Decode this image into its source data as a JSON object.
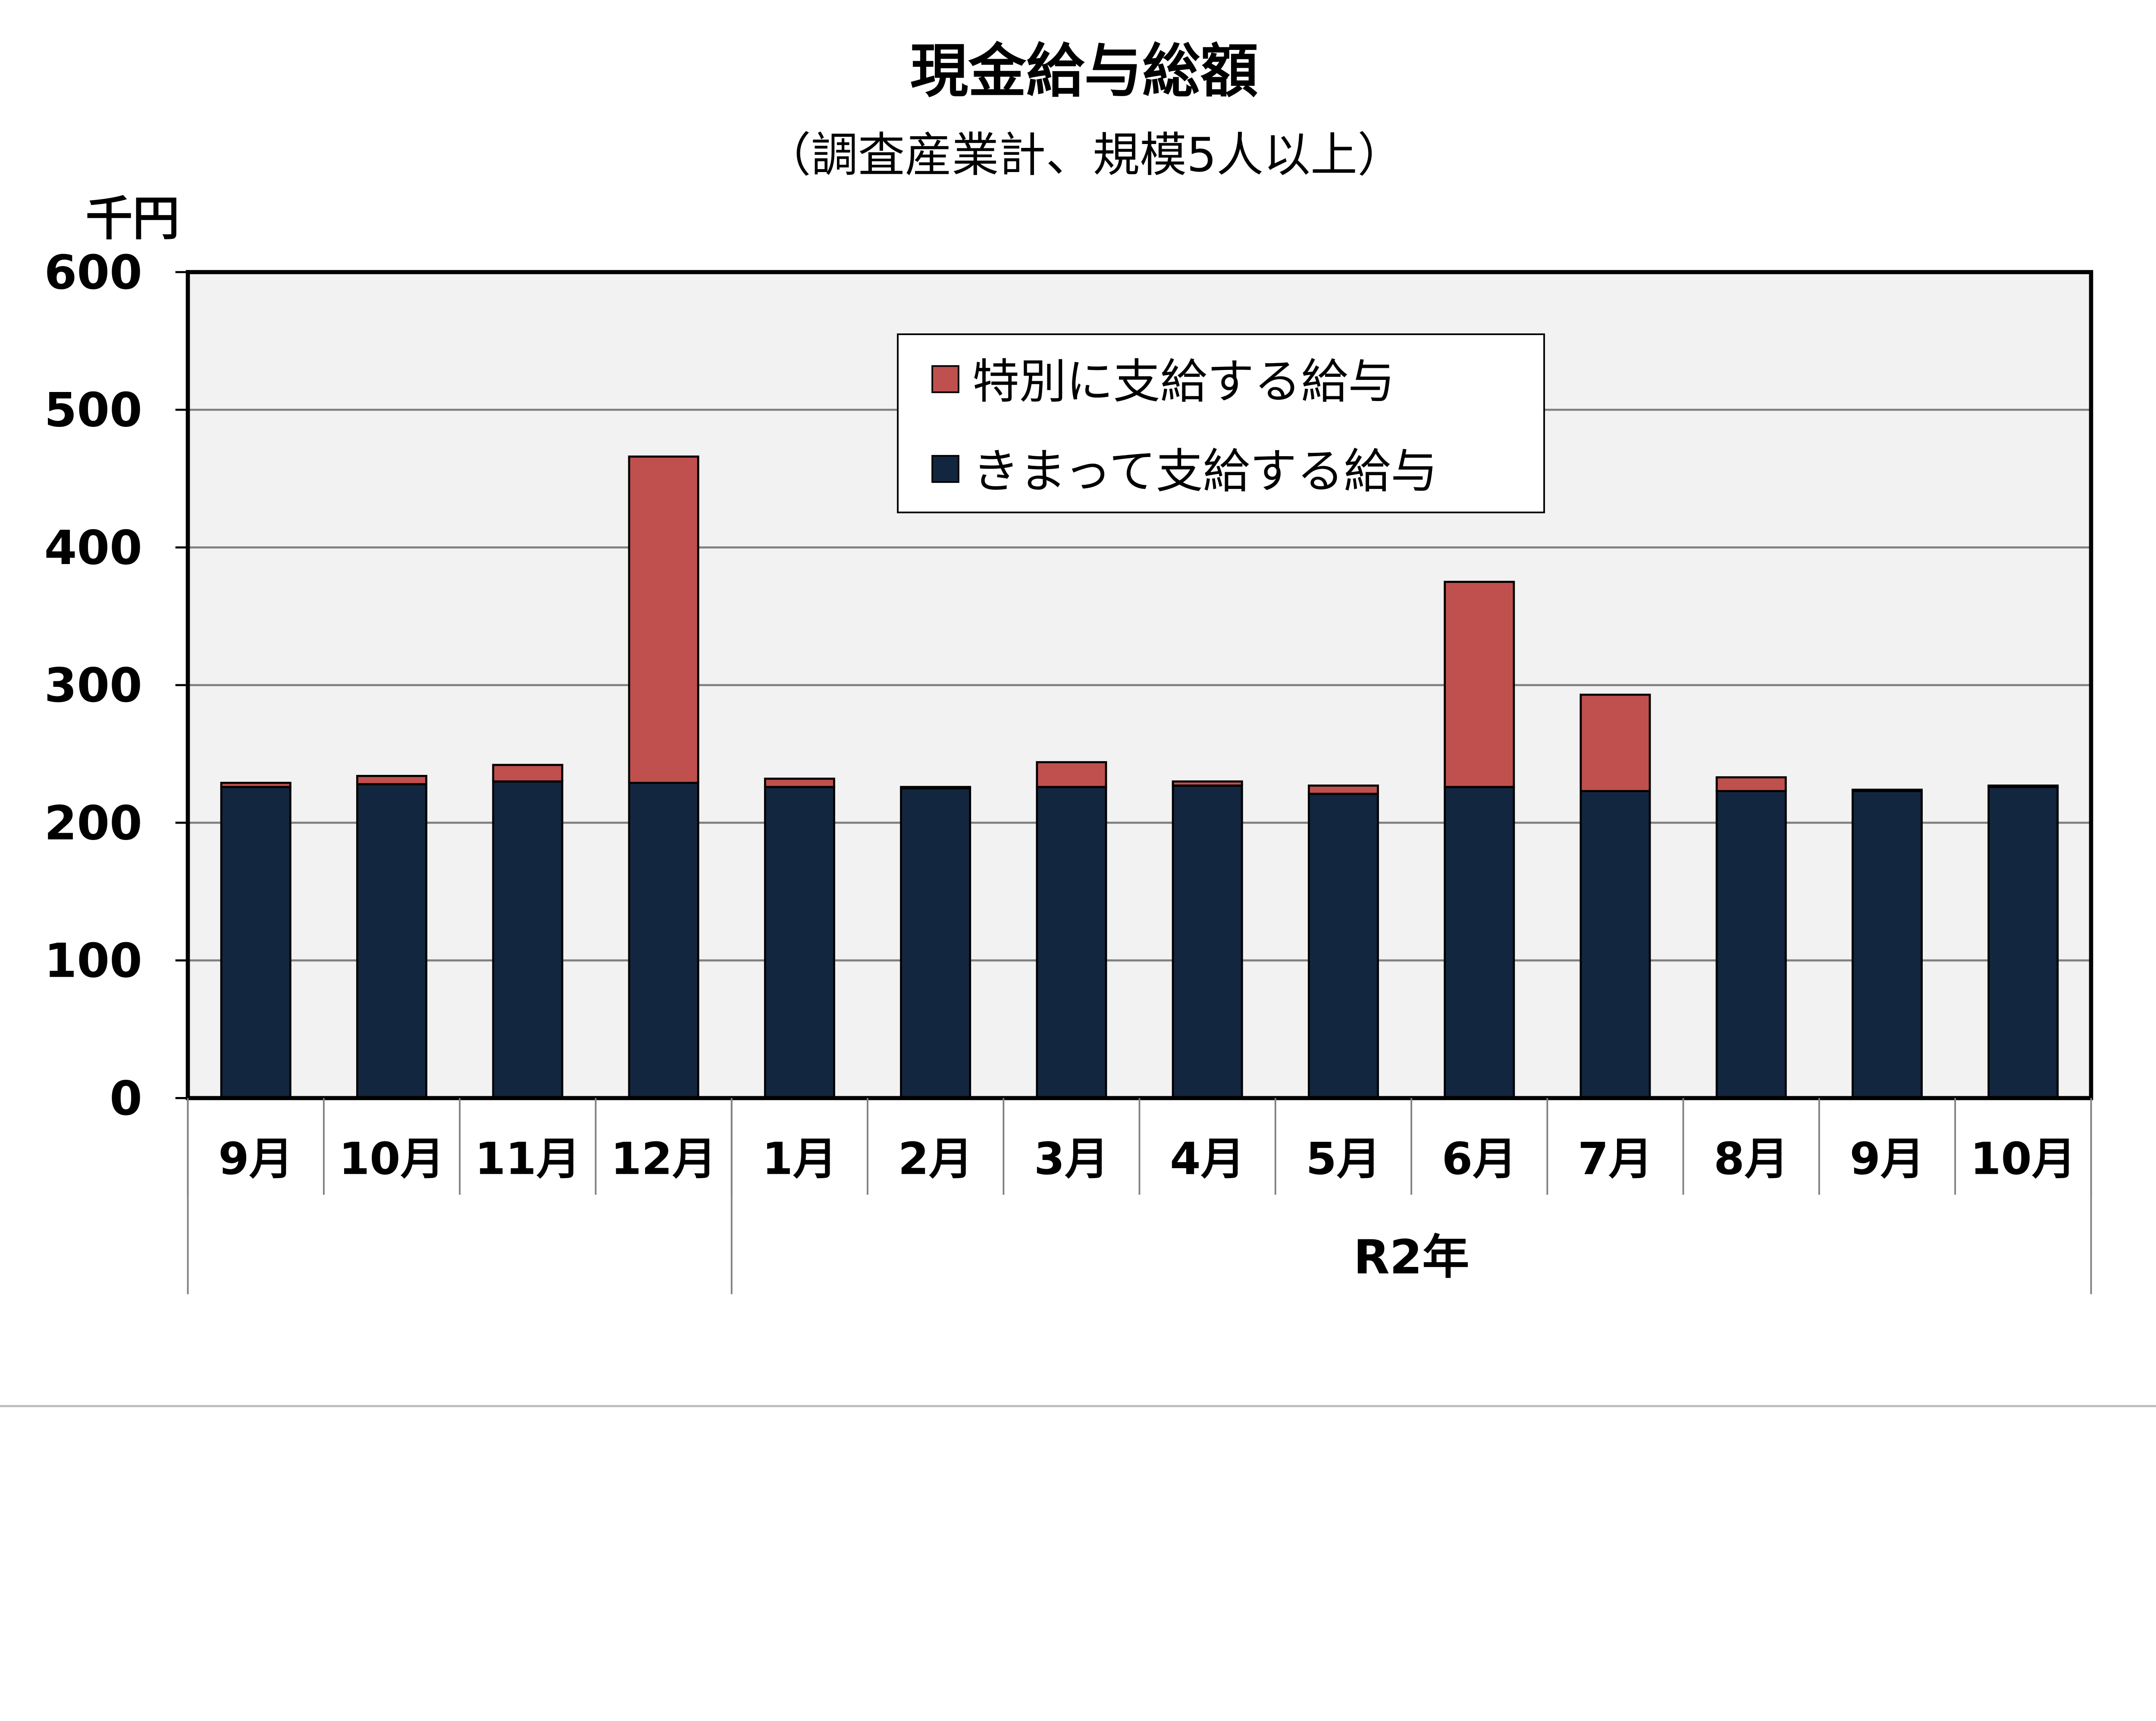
{
  "chart_data": {
    "type": "bar",
    "stacked": true,
    "title": "現金給与総額",
    "subtitle": "（調査産業計、規模5人以上）",
    "ylabel": "千円",
    "xlabel": "",
    "ylim": [
      0,
      600
    ],
    "yticks": [
      "0",
      "100",
      "200",
      "300",
      "400",
      "500",
      "600"
    ],
    "grid": true,
    "legend_position": "top-center",
    "categories": [
      "9月",
      "10月",
      "11月",
      "12月",
      "1月",
      "2月",
      "3月",
      "4月",
      "5月",
      "6月",
      "7月",
      "8月",
      "9月",
      "10月"
    ],
    "groups": [
      {
        "label": "",
        "span": 4
      },
      {
        "label": "R2年",
        "span": 10
      }
    ],
    "series": [
      {
        "name": "きまって支給する給与",
        "color": "#12263f",
        "values": [
          226,
          228,
          230,
          229,
          226,
          225,
          226,
          227,
          221,
          226,
          223,
          223,
          223,
          226
        ]
      },
      {
        "name": "特別に支給する給与",
        "color": "#c0504d",
        "values": [
          3,
          6,
          12,
          237,
          6,
          1,
          18,
          3,
          6,
          149,
          70,
          10,
          1,
          1
        ]
      }
    ]
  }
}
